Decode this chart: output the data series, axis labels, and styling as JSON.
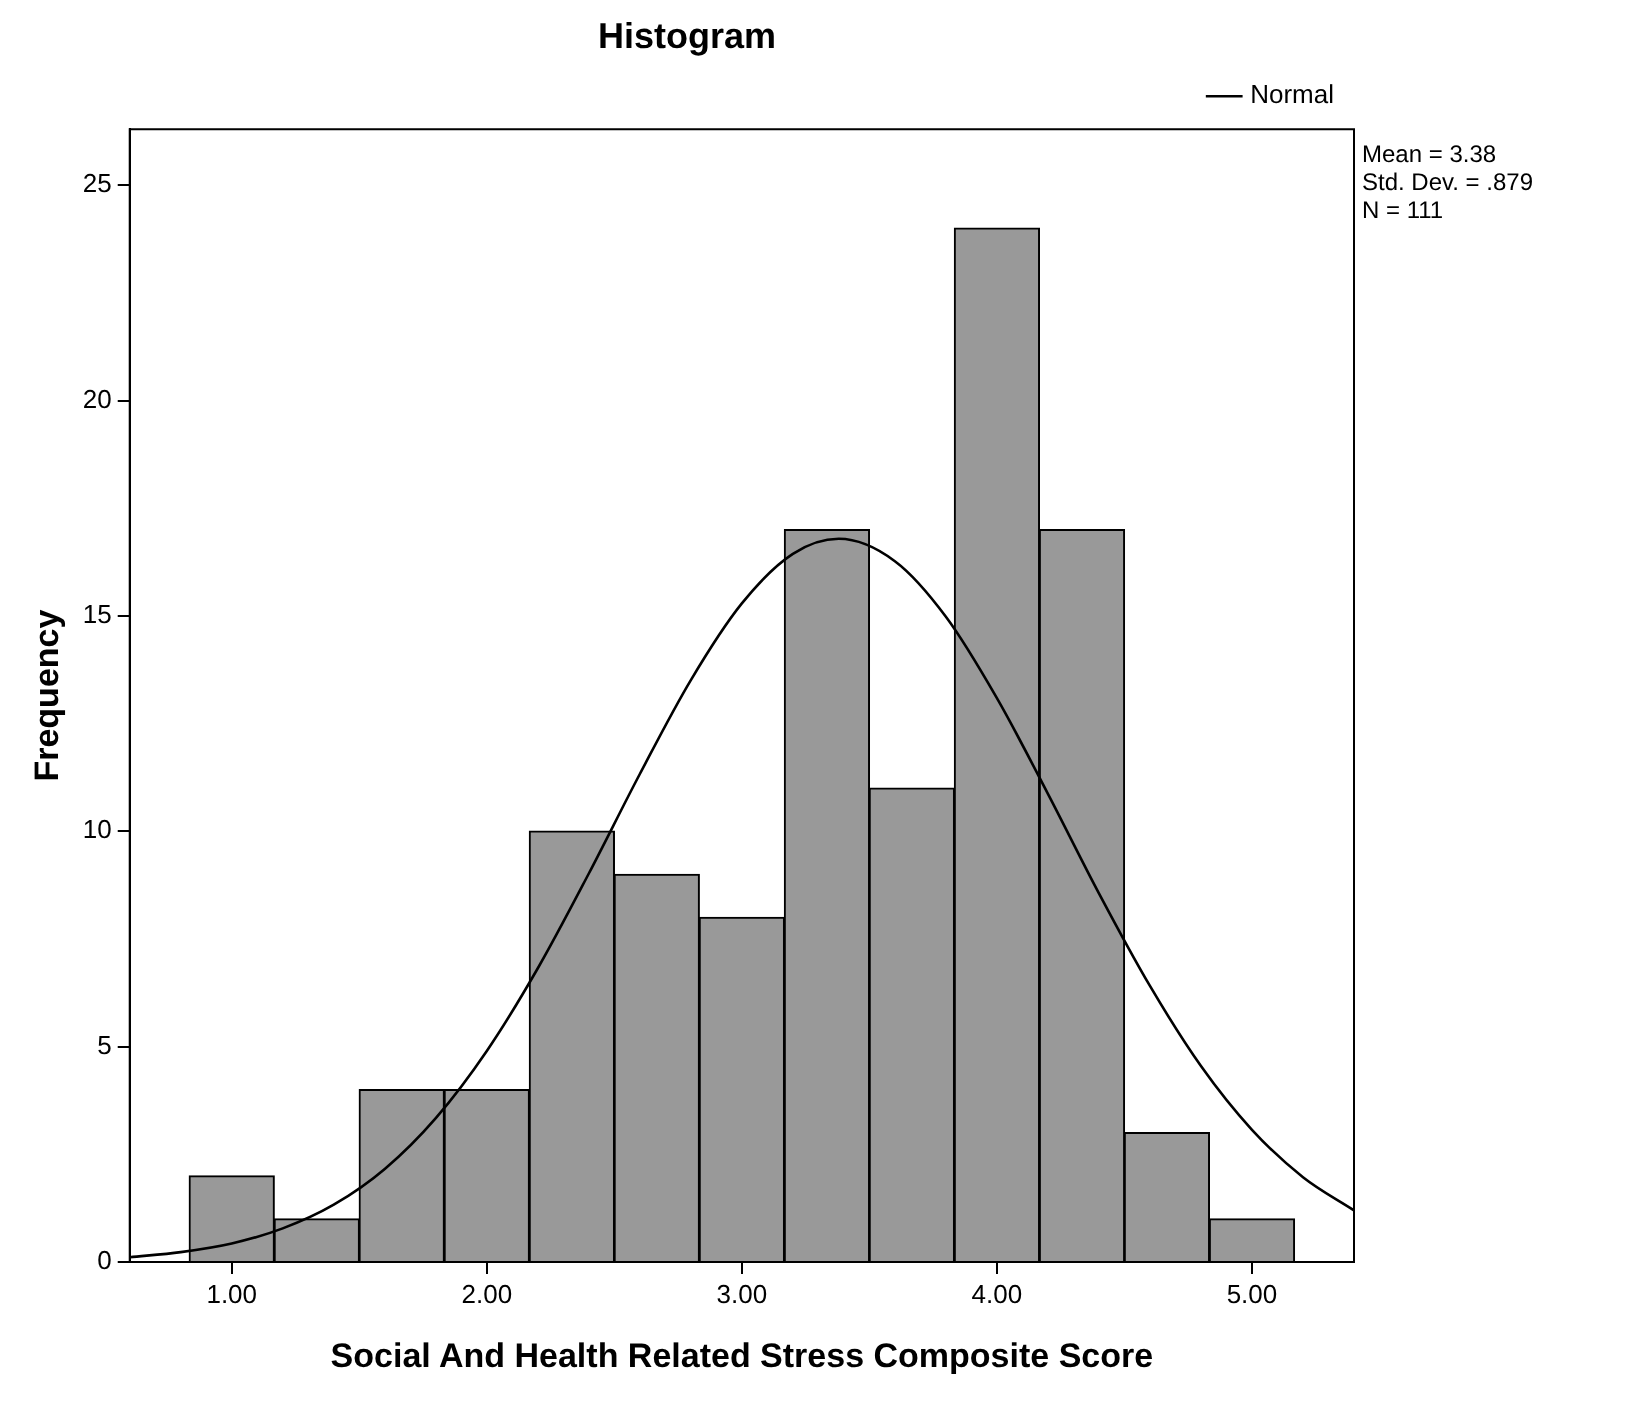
{
  "chart_data": {
    "type": "histogram",
    "title": "Histogram",
    "xlabel": "Social And Health Related Stress Composite Score",
    "ylabel": "Frequency",
    "bins": [
      0.833,
      1.167,
      1.5,
      1.833,
      2.167,
      2.5,
      2.833,
      3.167,
      3.5,
      3.833,
      4.167,
      4.5,
      4.833,
      5.167
    ],
    "values": [
      2,
      1,
      4,
      4,
      10,
      9,
      8,
      17,
      11,
      24,
      17,
      3,
      1
    ],
    "color": "#999999",
    "series": [
      {
        "name": "Normal",
        "type": "line",
        "color": "#000000",
        "x": [
          0.6,
          0.8,
          1.0,
          1.2,
          1.4,
          1.6,
          1.8,
          2.0,
          2.2,
          2.4,
          2.6,
          2.8,
          3.0,
          3.2,
          3.38,
          3.6,
          3.8,
          4.0,
          4.2,
          4.4,
          4.6,
          4.8,
          5.0,
          5.2,
          5.4
        ],
        "values": [
          0.11,
          0.23,
          0.43,
          0.78,
          1.33,
          2.16,
          3.34,
          4.9,
          6.82,
          9.02,
          11.33,
          13.51,
          15.29,
          16.44,
          16.79,
          16.27,
          14.98,
          13.09,
          10.87,
          8.56,
          6.41,
          4.55,
          3.07,
          1.97,
          1.2
        ]
      }
    ],
    "xlim": [
      0.6,
      5.4
    ],
    "xticks": [
      {
        "value": 1,
        "label": "1.00"
      },
      {
        "value": 2,
        "label": "2.00"
      },
      {
        "value": 3,
        "label": "3.00"
      },
      {
        "value": 4,
        "label": "4.00"
      },
      {
        "value": 5,
        "label": "5.00"
      }
    ],
    "ylim": [
      0,
      26.3
    ],
    "yticks": [
      0,
      5,
      10,
      15,
      20,
      25
    ],
    "annotations": [
      "Mean = 3.38",
      "Std. Dev. = .879",
      "N = 111"
    ],
    "legend": "top right",
    "marker": "none",
    "line_style": "solid",
    "grid": false
  }
}
